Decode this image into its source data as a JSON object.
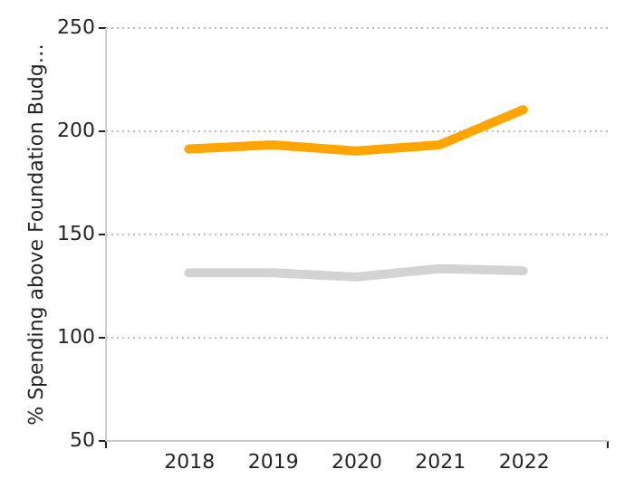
{
  "chart_data": {
    "type": "line",
    "ylabel": "% Spending above Foundation Budg…",
    "x": [
      2018,
      2019,
      2020,
      2021,
      2022
    ],
    "series": [
      {
        "color": "#ffa500",
        "values": [
          191,
          193,
          190,
          193,
          210
        ]
      },
      {
        "color": "#d3d3d3",
        "values": [
          131,
          131,
          129,
          133,
          132
        ]
      }
    ],
    "xlim": [
      2017,
      2023
    ],
    "xticks": [
      {
        "value": 2017,
        "label": null
      },
      2018,
      2019,
      2020,
      2021,
      2022,
      {
        "value": 2023,
        "label": null
      }
    ],
    "ylim": [
      50,
      250
    ],
    "yticks": [
      50,
      100,
      150,
      200,
      250
    ],
    "grid": "y",
    "marker": "none",
    "line_style": "solid"
  }
}
